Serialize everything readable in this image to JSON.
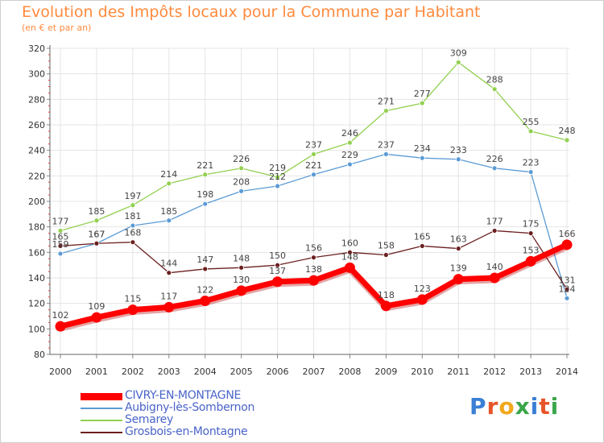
{
  "title": "Evolution des Impôts locaux pour la Commune par Habitant",
  "subtitle": "(en € et par an)",
  "brand": {
    "text": "Proxiti",
    "colors": [
      "#3a7fd5",
      "#e8542a",
      "#f1a81d",
      "#3aa64a",
      "#3a7fd5",
      "#e8542a",
      "#3aa64a"
    ]
  },
  "chart_data": {
    "type": "line",
    "title": "Evolution des Impôts locaux pour la Commune par Habitant",
    "subtitle": "(en € et par an)",
    "xlabel": "",
    "ylabel": "",
    "ylim": [
      80,
      320
    ],
    "ystep": 20,
    "grid": true,
    "legend_position": "bottom-left",
    "categories": [
      "2000",
      "2001",
      "2002",
      "2003",
      "2004",
      "2005",
      "2006",
      "2007",
      "2008",
      "2009",
      "2010",
      "2011",
      "2012",
      "2013",
      "2014"
    ],
    "series": [
      {
        "name": "CIVRY-EN-MONTAGNE",
        "color": "#ff0000",
        "emphasis": true,
        "values": [
          102,
          109,
          115,
          117,
          122,
          130,
          137,
          138,
          148,
          118,
          123,
          139,
          140,
          153,
          166
        ]
      },
      {
        "name": "Aubigny-lès-Sombernon",
        "color": "#5b9bd5",
        "emphasis": false,
        "values": [
          159,
          167,
          181,
          185,
          198,
          208,
          212,
          221,
          229,
          237,
          234,
          233,
          226,
          223,
          124
        ]
      },
      {
        "name": "Semarey",
        "color": "#92d050",
        "emphasis": false,
        "values": [
          177,
          185,
          197,
          214,
          221,
          226,
          219,
          237,
          246,
          271,
          277,
          309,
          288,
          255,
          248
        ]
      },
      {
        "name": "Grosbois-en-Montagne",
        "color": "#6b1f1f",
        "emphasis": false,
        "values": [
          165,
          167,
          168,
          144,
          147,
          148,
          150,
          156,
          160,
          158,
          165,
          163,
          177,
          175,
          131
        ]
      }
    ]
  }
}
